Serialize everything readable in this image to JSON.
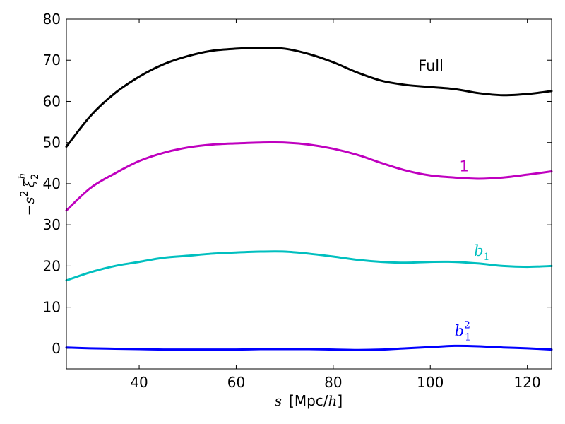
{
  "chart_data": {
    "type": "line",
    "title": "",
    "xlabel": {
      "var": "s",
      "unit_prefix": "[Mpc/",
      "unit_var": "h",
      "unit_suffix": "]"
    },
    "ylabel": {
      "sign": "−",
      "s": "s",
      "s_exp": "2",
      "xi": "ξ",
      "xi_sub": "2",
      "xi_sup": "h"
    },
    "xlim": [
      25,
      125
    ],
    "ylim": [
      -5,
      80
    ],
    "xticks": [
      40,
      60,
      80,
      100,
      120
    ],
    "yticks": [
      0,
      10,
      20,
      30,
      40,
      50,
      60,
      70,
      80
    ],
    "grid": false,
    "series": [
      {
        "name": "Full",
        "label_parts": {
          "base": "Full",
          "sub": "",
          "sup": ""
        },
        "label_at": [
          97.5,
          67.5
        ],
        "color": "#000000",
        "x": [
          25,
          30,
          35,
          40,
          45,
          50,
          55,
          60,
          65,
          70,
          75,
          80,
          85,
          90,
          95,
          100,
          105,
          110,
          115,
          120,
          125
        ],
        "y": [
          49,
          56.5,
          62,
          66,
          69,
          71,
          72.3,
          72.8,
          73,
          72.8,
          71.5,
          69.5,
          67,
          65,
          64,
          63.5,
          63,
          62,
          61.5,
          61.8,
          62.5
        ]
      },
      {
        "name": "1",
        "label_parts": {
          "base": "1",
          "sub": "",
          "sup": ""
        },
        "label_at": [
          106,
          43
        ],
        "color": "#bf00bf",
        "x": [
          25,
          30,
          35,
          40,
          45,
          50,
          55,
          60,
          65,
          70,
          75,
          80,
          85,
          90,
          95,
          100,
          105,
          110,
          115,
          120,
          125
        ],
        "y": [
          33.5,
          39,
          42.5,
          45.5,
          47.5,
          48.8,
          49.5,
          49.8,
          50,
          50,
          49.5,
          48.5,
          47,
          45,
          43.2,
          42,
          41.5,
          41.2,
          41.5,
          42.2,
          43
        ]
      },
      {
        "name": "b1",
        "label_parts": {
          "base": "b",
          "sub": "1",
          "sup": ""
        },
        "label_at": [
          109,
          22.5
        ],
        "color": "#00bfbf",
        "x": [
          25,
          30,
          35,
          40,
          45,
          50,
          55,
          60,
          65,
          70,
          75,
          80,
          85,
          90,
          95,
          100,
          105,
          110,
          115,
          120,
          125
        ],
        "y": [
          16.5,
          18.5,
          20,
          21,
          22,
          22.5,
          23,
          23.3,
          23.5,
          23.5,
          23,
          22.3,
          21.5,
          21,
          20.8,
          21,
          21,
          20.6,
          20,
          19.8,
          20
        ]
      },
      {
        "name": "b1^2",
        "label_parts": {
          "base": "b",
          "sub": "1",
          "sup": "2"
        },
        "label_at": [
          105,
          3
        ],
        "color": "#0000ff",
        "x": [
          25,
          30,
          35,
          40,
          45,
          50,
          55,
          60,
          65,
          70,
          75,
          80,
          85,
          90,
          95,
          100,
          105,
          110,
          115,
          120,
          125
        ],
        "y": [
          0.2,
          0,
          -0.1,
          -0.2,
          -0.3,
          -0.3,
          -0.3,
          -0.3,
          -0.2,
          -0.2,
          -0.2,
          -0.3,
          -0.4,
          -0.3,
          0,
          0.3,
          0.6,
          0.5,
          0.2,
          0,
          -0.3
        ]
      }
    ]
  }
}
